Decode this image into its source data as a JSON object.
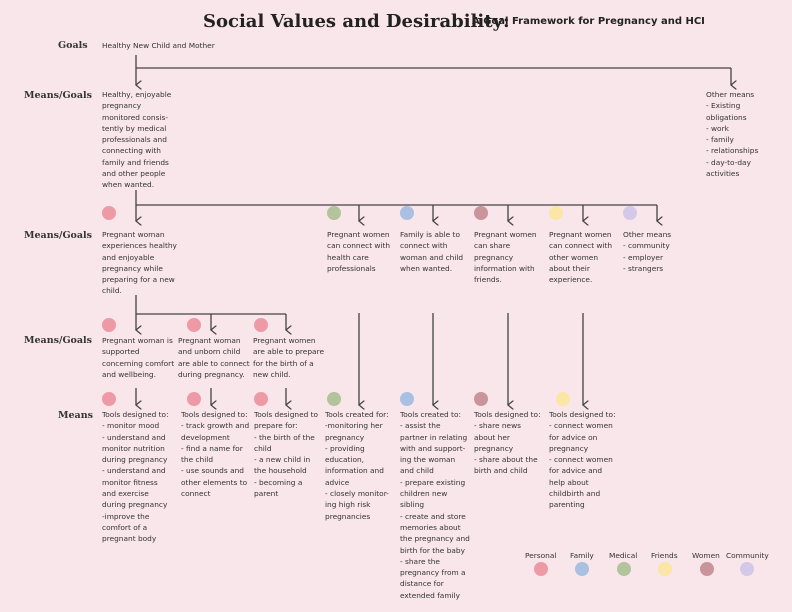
{
  "title": "Social Values and Desirability:",
  "subtitle": "A Goal Framework for Pregnancy and HCI",
  "row_labels": {
    "goals": "Goals",
    "means_goals_1": "Means/Goals",
    "means_goals_2": "Means/Goals",
    "means_goals_3": "Means/Goals",
    "means": "Means"
  },
  "colors": {
    "personal": "#ee9aa6",
    "family": "#a9c0e2",
    "medical": "#b3c39b",
    "friends": "#fbe6a5",
    "women": "#c9949a",
    "community": "#d4c8e9",
    "line": "#444444",
    "background": "#f8e6ea"
  },
  "nodes": {
    "goal": "Healthy New Child and Mother",
    "mg1_main": "Healthy, enjoyable\npregnancy\nmonitored consis-\ntently by medical\nprofessionals and\nconnecting with\nfamily and friends\nand other people\nwhen wanted.",
    "mg1_other": "Other means\n - Existing\nobligations\n  - work\n - family\n  - relationships\n - day-to-day\nactivities",
    "mg2_personal": "Pregnant woman\nexperiences healthy\nand enjoyable\npregnancy while\npreparing for a new\nchild.",
    "mg2_medical": "Pregnant women\ncan connect with\nhealth care\nprofessionals",
    "mg2_family": "Family is able to\nconnect with\nwoman and child\nwhen wanted.",
    "mg2_friends_share": "Pregnant women\ncan share\npregnancy\ninformation with\nfriends.",
    "mg2_women": "Pregnant women\ncan connect with\nother women\nabout their\nexperience.",
    "mg2_other": "Other means\n - community\n - employer\n - strangers",
    "mg3_support": "Pregnant woman is\nsupported\nconcerning comfort\nand wellbeing.",
    "mg3_connect": "Pregnant woman\nand unborn child\nare able to connect\nduring pregnancy.",
    "mg3_prepare": "Pregnant women\nare able to prepare\nfor the birth of a\nnew child.",
    "m_monitor": "Tools designed to:\n- monitor mood\n- understand and\nmonitor nutrition\nduring pregnancy\n- understand and\nmonitor fitness\nand exercise\nduring pregnancy\n-improve the\ncomfort of a\npregnant body",
    "m_track": "Tools designed to:\n- track growth and\ndevelopment\n- find a name for\nthe child\n- use sounds and\nother elements to\nconnect",
    "m_prepare": "Tools designed to\nprepare for:\n - the birth of the\nchild\n - a new child in\nthe household\n - becoming a\nparent",
    "m_medical": "Tools created for:\n-monitoring her\npregnancy\n- providing\neducation,\ninformation and\nadvice\n- closely monitor-\ning high risk\npregnancies",
    "m_family": "Tools created to:\n- assist the\npartner in relating\nwith and support-\ning the woman\nand child\n- prepare existing\nchildren new\nsibling\n- create and store\nmemories about\nthe pregnancy and\nbirth for the baby\n- share the\npregnancy from a\ndistance for\nextended family",
    "m_friends": "Tools designed to:\n- share news\nabout her\npregnancy\n- share about the\nbirth and child",
    "m_women": "Tools designed to:\n- connect women\nfor advice on\npregnancy\n- connect women\nfor advice and\nhelp about\nchildbirth and\nparenting"
  },
  "legend": {
    "personal": "Personal",
    "family": "Family",
    "medical": "Medical",
    "friends": "Friends",
    "women": "Women",
    "community": "Community"
  }
}
